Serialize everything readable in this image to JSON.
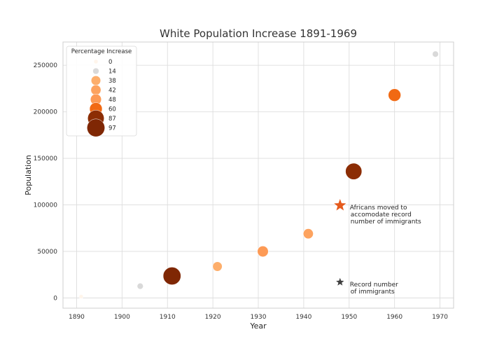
{
  "chart_data": {
    "type": "scatter",
    "title": "White Population Increase 1891-1969",
    "xlabel": "Year",
    "ylabel": "Population",
    "xlim": [
      1887,
      1973
    ],
    "ylim": [
      -11000,
      275000
    ],
    "xticks": [
      1890,
      1900,
      1910,
      1920,
      1930,
      1940,
      1950,
      1960,
      1970
    ],
    "yticks": [
      0,
      50000,
      100000,
      150000,
      200000,
      250000
    ],
    "grid": true,
    "legend_title": "Percentage Increase",
    "legend_placement": "top-left",
    "legend_entries": [
      0,
      14,
      38,
      42,
      48,
      60,
      87,
      97
    ],
    "points": [
      {
        "year": 1891,
        "population": 1500,
        "pct_increase": 0
      },
      {
        "year": 1904,
        "population": 12600,
        "pct_increase": 14
      },
      {
        "year": 1911,
        "population": 23600,
        "pct_increase": 97
      },
      {
        "year": 1921,
        "population": 33800,
        "pct_increase": 38
      },
      {
        "year": 1931,
        "population": 50000,
        "pct_increase": 48
      },
      {
        "year": 1941,
        "population": 69000,
        "pct_increase": 42
      },
      {
        "year": 1951,
        "population": 136000,
        "pct_increase": 87
      },
      {
        "year": 1960,
        "population": 218000,
        "pct_increase": 60
      },
      {
        "year": 1969,
        "population": 262000,
        "pct_increase": 14
      }
    ],
    "annotations": [
      {
        "marker": "star",
        "year": 1948,
        "population": 99500,
        "color": "#e55a1c",
        "lines": [
          "Africans moved to",
          "accomodate record",
          "number of immigrants"
        ]
      },
      {
        "marker": "star",
        "year": 1948,
        "population": 17000,
        "color": "#404040",
        "lines": [
          "Record number",
          "of immigrants"
        ]
      }
    ],
    "colors": {
      "0": "#fff5eb",
      "14": "#d9d9d9",
      "38": "#fdae6b",
      "42": "#fda35f",
      "48": "#fd9a55",
      "60": "#f16913",
      "87": "#8c2d04",
      "97": "#7f2704"
    }
  }
}
